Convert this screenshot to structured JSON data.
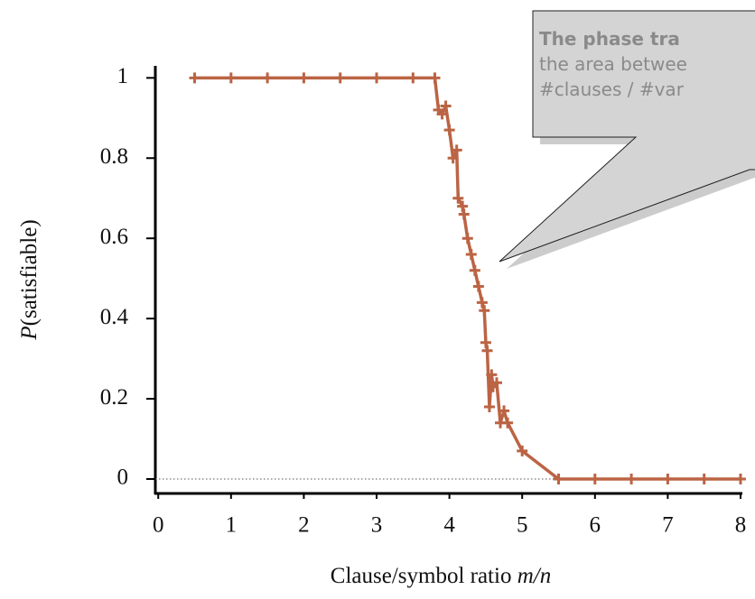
{
  "chart_data": {
    "type": "line",
    "y_label_italic": "P",
    "y_label": "(satisfiable)",
    "x_label": "Clause/symbol ratio ",
    "x_label_italic": "m/n",
    "callout": {
      "title": "The phase tra",
      "lines": [
        "the area betwee",
        "#clauses / #var"
      ]
    },
    "x": [
      0.5,
      1,
      1.5,
      2,
      2.5,
      3,
      3.5,
      3.8,
      3.85,
      3.9,
      3.95,
      4.0,
      4.05,
      4.1,
      4.12,
      4.18,
      4.2,
      4.25,
      4.3,
      4.35,
      4.4,
      4.45,
      4.48,
      4.5,
      4.52,
      4.55,
      4.58,
      4.6,
      4.65,
      4.7,
      4.75,
      4.8,
      5.0,
      5.5,
      6,
      6.5,
      7,
      7.5,
      8
    ],
    "series": [
      {
        "color": "#bb6444",
        "values": [
          1,
          1,
          1,
          1,
          1,
          1,
          1,
          1,
          0.92,
          0.91,
          0.93,
          0.87,
          0.8,
          0.82,
          0.7,
          0.68,
          0.66,
          0.6,
          0.56,
          0.52,
          0.48,
          0.44,
          0.42,
          0.34,
          0.32,
          0.18,
          0.26,
          0.23,
          0.24,
          0.14,
          0.17,
          0.14,
          0.07,
          0,
          0,
          0,
          0,
          0,
          0
        ]
      }
    ],
    "xlim": [
      -0.04,
      8
    ],
    "ylim": [
      -0.036,
      1.03
    ],
    "xticks": [
      0,
      1,
      2,
      3,
      4,
      5,
      6,
      7,
      8
    ],
    "yticks": [
      0,
      0.2,
      0.4,
      0.6,
      0.8,
      1
    ]
  }
}
